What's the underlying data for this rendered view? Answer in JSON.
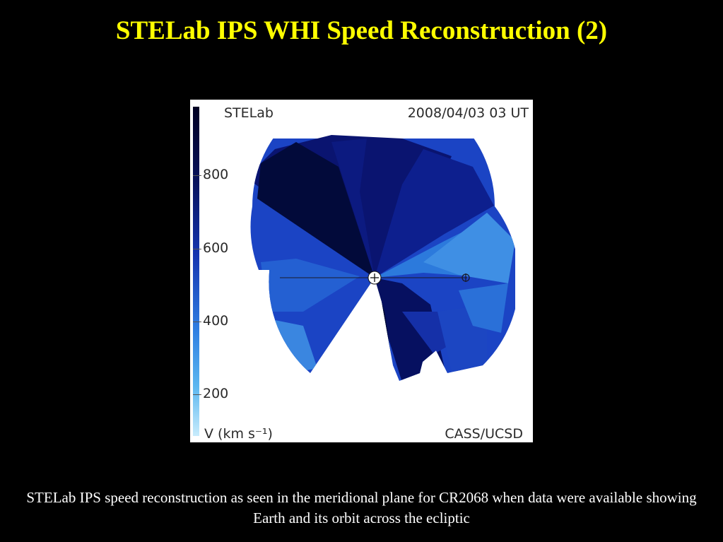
{
  "slide": {
    "title": "STELab IPS WHI Speed Reconstruction (2)",
    "caption": "STELab IPS speed reconstruction as seen in the meridional plane for CR2068 when data were available showing Earth and its orbit across the ecliptic"
  },
  "figure": {
    "source_label": "STELab",
    "date_label": "2008/04/03 03 UT",
    "credit_label": "CASS/UCSD",
    "colorbar": {
      "unit_label": "V (km s⁻¹)",
      "ticks": [
        "800",
        "600",
        "400",
        "200"
      ],
      "colors": {
        "fast": "#000033",
        "mid_high": "#0a1a8a",
        "mid": "#1f4fcf",
        "slow": "#4aa6ea",
        "slowest": "#a9dcf8"
      }
    },
    "icons": {
      "sun": "sun-marker-icon",
      "earth": "earth-marker-icon"
    }
  }
}
